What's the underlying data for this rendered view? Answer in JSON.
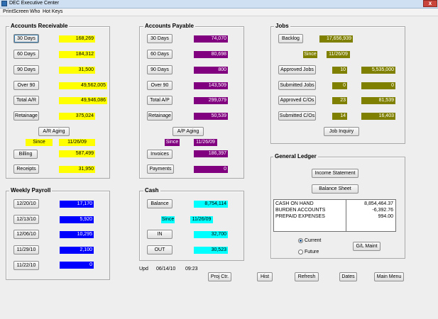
{
  "window": {
    "title": "DEC   Executive Center",
    "close": "x"
  },
  "menu": {
    "printscreen": "PrintScreen",
    "who": "Who",
    "hotkeys": "Hot Keys"
  },
  "ar": {
    "title": "Accounts Receivable",
    "rows": [
      {
        "label": "30 Days",
        "value": "168,269"
      },
      {
        "label": "60 Days",
        "value": "184,312"
      },
      {
        "label": "90 Days",
        "value": "31,500"
      },
      {
        "label": "Over 90",
        "value": "49,562,005"
      },
      {
        "label": "Total A/R",
        "value": "49,946,086"
      },
      {
        "label": "Retainage",
        "value": "375,024"
      }
    ],
    "aging_button": "A/R Aging",
    "since_label": "Since",
    "since_date": "11/26/09",
    "billing_label": "Billing",
    "billing_value": "587,499",
    "receipts_label": "Receipts",
    "receipts_value": "31,950"
  },
  "ap": {
    "title": "Accounts Payable",
    "rows": [
      {
        "label": "30 Days",
        "value": "74,070"
      },
      {
        "label": "60 Days",
        "value": "80,698"
      },
      {
        "label": "90 Days",
        "value": "800"
      },
      {
        "label": "Over 90",
        "value": "143,509"
      },
      {
        "label": "Total A/P",
        "value": "299,079"
      },
      {
        "label": "Retainage",
        "value": "50,539"
      }
    ],
    "aging_button": "A/P Aging",
    "since_label": "Since",
    "since_date": "11/26/09",
    "invoices_label": "Invoices",
    "invoices_value": "186,397",
    "payments_label": "Payments",
    "payments_value": "0"
  },
  "jobs": {
    "title": "Jobs",
    "backlog_label": "Backlog",
    "backlog_value": "17,656,939",
    "since_label": "Since",
    "since_date": "11/26/09",
    "rows": [
      {
        "label": "Approved Jobs",
        "count": "10",
        "value": "5,535,000"
      },
      {
        "label": "Submitted Jobs",
        "count": "0",
        "value": "0"
      },
      {
        "label": "Approved C/Os",
        "count": "23",
        "value": "81,539"
      },
      {
        "label": "Submitted C/Os",
        "count": "14",
        "value": "16,403"
      }
    ],
    "inquiry_button": "Job Inquiry"
  },
  "payroll": {
    "title": "Weekly Payroll",
    "rows": [
      {
        "label": "12/20/10",
        "value": "17,170"
      },
      {
        "label": "12/13/10",
        "value": "5,920"
      },
      {
        "label": "12/06/10",
        "value": "10,295"
      },
      {
        "label": "11/29/10",
        "value": "2,100"
      },
      {
        "label": "11/22/10",
        "value": "0"
      }
    ]
  },
  "cash": {
    "title": "Cash",
    "balance_label": "Balance",
    "balance_value": "8,754,114",
    "since_label": "Since",
    "since_date": "11/26/09",
    "in_label": "IN",
    "in_value": "32,700",
    "out_label": "OUT",
    "out_value": "30,523"
  },
  "gl": {
    "title": "General Ledger",
    "income_button": "Income Statement",
    "balance_button": "Balance Sheet",
    "rows": [
      {
        "label": "CASH ON HAND",
        "value": "8,854,464.37"
      },
      {
        "label": "BURDEN ACCOUNTS",
        "value": "-6,392.76"
      },
      {
        "label": "PREPAID EXPENSES",
        "value": "994.00"
      }
    ],
    "current_label": "Current",
    "future_label": "Future",
    "maint_button": "G/L Maint"
  },
  "footer": {
    "upd_label": "Upd",
    "upd_date": "06/14/10",
    "upd_time": "09:23",
    "proj_button": "Proj Ctr.",
    "hist_button": "Hist",
    "refresh_button": "Refresh",
    "dates_button": "Dates",
    "main_menu_button": "Main Menu"
  },
  "colors": {
    "ar": "#ffff00",
    "ap": "#800080",
    "jobs": "#808000",
    "payroll": "#0000ff",
    "cash": "#00ffff"
  },
  "icons": {
    "app": "app-icon",
    "close": "close-icon",
    "radio": "radio-button"
  }
}
